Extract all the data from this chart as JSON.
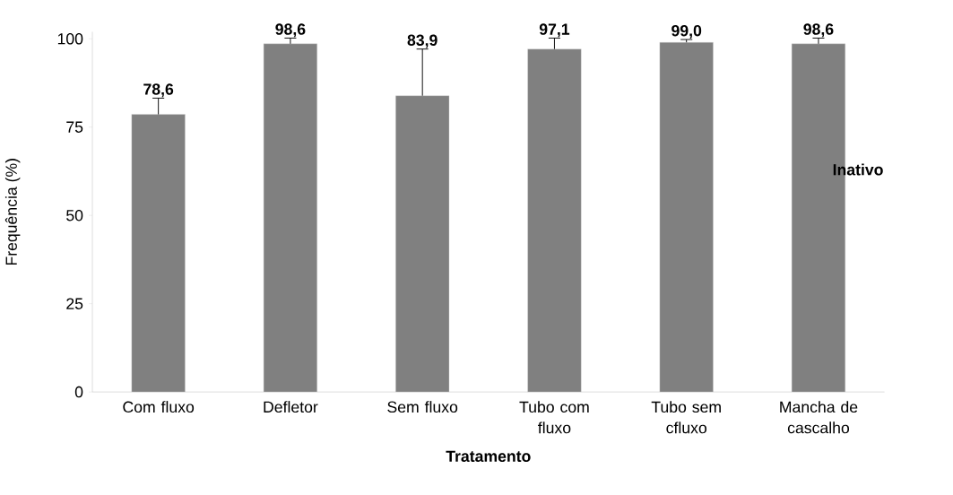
{
  "chart_data": {
    "type": "bar",
    "xlabel": "Tratamento",
    "ylabel": "Frequência (%)",
    "categories": [
      "Com fluxo",
      "Defletor",
      "Sem fluxo",
      "Tubo com fluxo",
      "Tubo sem cfluxo",
      "Mancha de cascalho"
    ],
    "values": [
      78.6,
      98.6,
      83.9,
      97.1,
      99.0,
      98.6
    ],
    "errors": [
      [
        78.6,
        83.2
      ],
      [
        98.6,
        100.2
      ],
      [
        83.9,
        97.1
      ],
      [
        97.1,
        100.2
      ],
      [
        99.0,
        99.8
      ],
      [
        98.6,
        100.2
      ]
    ],
    "value_labels": [
      "78,6",
      "98,6",
      "83,9",
      "97,1",
      "99,0",
      "98,6"
    ],
    "color": "#808080",
    "ylim": [
      0,
      102
    ],
    "yticks": [
      0,
      25,
      50,
      75,
      100
    ],
    "annotations": [
      "Inativo"
    ],
    "grid": false
  }
}
